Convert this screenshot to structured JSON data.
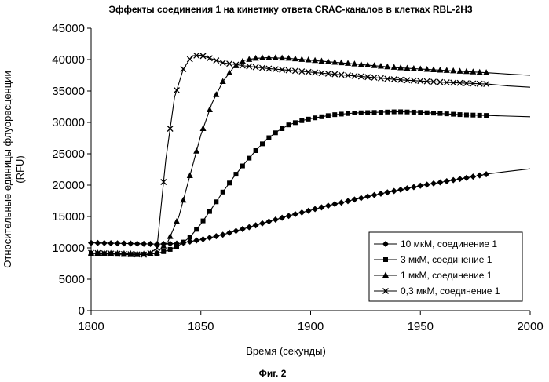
{
  "chart_data": {
    "type": "line",
    "title": "Эффекты соединения 1 на кинетику ответа CRAC-каналов в клетках RBL-2H3",
    "xlabel": "Время (секунды)",
    "ylabel": "Относительные единицы флуоресценции (RFU)",
    "ylabel_lines": [
      "Относительные единицы флуоресценции",
      "(RFU)"
    ],
    "xlim": [
      1800,
      2000
    ],
    "ylim": [
      0,
      45000
    ],
    "x_ticks": [
      1800,
      1850,
      1900,
      1950,
      2000
    ],
    "y_ticks": [
      0,
      5000,
      10000,
      15000,
      20000,
      25000,
      30000,
      35000,
      40000,
      45000
    ],
    "grid": false,
    "legend_position": "bottom-right",
    "caption": "Фиг. 2",
    "series": [
      {
        "name": "10 мкМ, соединение 1",
        "marker": "diamond",
        "marker_end": 1981,
        "x": [
          1800,
          1830,
          1840,
          1850,
          1860,
          1870,
          1880,
          1890,
          1900,
          1910,
          1920,
          1930,
          1940,
          1950,
          1960,
          1970,
          1981,
          1990,
          2000
        ],
        "y": [
          10800,
          10600,
          10700,
          11300,
          12100,
          13100,
          14100,
          15100,
          16000,
          16900,
          17700,
          18500,
          19200,
          19900,
          20500,
          21100,
          21800,
          22200,
          22600
        ]
      },
      {
        "name": "3 мкМ, соединение 1",
        "marker": "square",
        "marker_end": 1981,
        "x": [
          1800,
          1810,
          1820,
          1830,
          1835,
          1840,
          1845,
          1850,
          1855,
          1860,
          1865,
          1870,
          1875,
          1880,
          1885,
          1890,
          1895,
          1900,
          1910,
          1920,
          1930,
          1940,
          1950,
          1960,
          1970,
          1981,
          1990,
          2000
        ],
        "y": [
          9100,
          9000,
          8900,
          9100,
          9600,
          10400,
          11700,
          13800,
          16300,
          18900,
          21300,
          23500,
          25500,
          27300,
          28600,
          29600,
          30200,
          30600,
          31200,
          31500,
          31600,
          31700,
          31600,
          31400,
          31200,
          31100,
          31000,
          30900
        ]
      },
      {
        "name": "1 мкМ, соединение 1",
        "marker": "triangle",
        "marker_end": 1981,
        "x": [
          1800,
          1825,
          1830,
          1835,
          1840,
          1845,
          1850,
          1855,
          1860,
          1865,
          1870,
          1875,
          1880,
          1890,
          1900,
          1920,
          1940,
          1960,
          1981,
          1990,
          2000
        ],
        "y": [
          9200,
          9000,
          9200,
          11000,
          15000,
          21500,
          28000,
          33000,
          36500,
          38800,
          39900,
          40200,
          40300,
          40200,
          39900,
          39300,
          38700,
          38300,
          37900,
          37700,
          37500
        ]
      },
      {
        "name": "0,3 мкМ, соединение 1",
        "marker": "x",
        "marker_end": 1981,
        "x": [
          1800,
          1826,
          1830,
          1834,
          1838,
          1842,
          1846,
          1850,
          1855,
          1860,
          1870,
          1880,
          1890,
          1900,
          1920,
          1940,
          1960,
          1981,
          1990,
          2000
        ],
        "y": [
          9200,
          8900,
          10000,
          24000,
          34000,
          38500,
          40600,
          40700,
          40100,
          39500,
          39000,
          38600,
          38300,
          38000,
          37400,
          36800,
          36400,
          36100,
          35800,
          35600
        ]
      }
    ]
  }
}
